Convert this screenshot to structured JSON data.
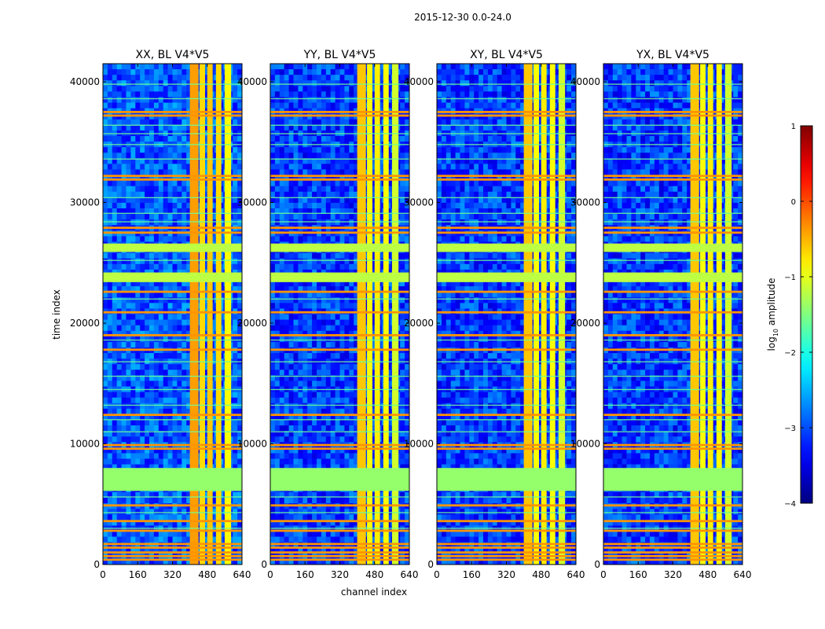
{
  "figure": {
    "suptitle": "2015-12-30 0.0-24.0",
    "xlabel": "channel index",
    "ylabel": "time index"
  },
  "chart_data": {
    "type": "heatmap",
    "x_range": [
      0,
      640
    ],
    "y_range": [
      0,
      41500
    ],
    "x_ticks": [
      0,
      160,
      320,
      480,
      640
    ],
    "y_ticks": [
      0,
      10000,
      20000,
      30000,
      40000
    ],
    "panels": [
      {
        "title": "XX, BL V4*V5",
        "pol": "XX"
      },
      {
        "title": "YY, BL V4*V5",
        "pol": "YY"
      },
      {
        "title": "XY, BL V4*V5",
        "pol": "XY"
      },
      {
        "title": "YX, BL V4*V5",
        "pol": "YX"
      }
    ],
    "flagged_time_block": {
      "from": 6100,
      "to": 8000,
      "log_amplitude": -1.4
    },
    "bright_time_bands": [
      {
        "from": 23400,
        "to": 24200,
        "log_amplitude": -1.2
      },
      {
        "from": 25900,
        "to": 26600,
        "log_amplitude": -1.2
      }
    ],
    "orange_time_lines": [
      400,
      700,
      1000,
      1400,
      1700,
      2800,
      3600,
      4900,
      9600,
      9900,
      12400,
      17800,
      19000,
      20900,
      22600,
      27500,
      27900,
      31900,
      32200,
      37200,
      37500
    ],
    "thin_time_lines": [
      3000,
      4300,
      5600,
      11000,
      12000,
      13200,
      14500,
      15600,
      16800,
      18600,
      22000,
      25200,
      28400,
      29100,
      30400,
      33600,
      34800,
      35700,
      36400,
      38600,
      39800
    ],
    "bright_channel_bands": [
      {
        "from": 400,
        "to": 440,
        "log_amplitude": -0.6
      },
      {
        "from": 445,
        "to": 470,
        "log_amplitude": -0.9
      },
      {
        "from": 480,
        "to": 505,
        "log_amplitude": -0.8
      },
      {
        "from": 520,
        "to": 545,
        "log_amplitude": -0.9
      },
      {
        "from": 560,
        "to": 590,
        "log_amplitude": -1.1
      }
    ],
    "colorbar": {
      "label": "log10 amplitude",
      "label_main": "log",
      "label_sub": "10",
      "label_rest": " amplitude",
      "min": -4,
      "max": 1,
      "ticks": [
        1,
        0,
        -1,
        -2,
        -3,
        -4
      ],
      "tick_labels": [
        "1",
        "0",
        "−1",
        "−2",
        "−3",
        "−4"
      ],
      "colormap": "jet"
    }
  }
}
